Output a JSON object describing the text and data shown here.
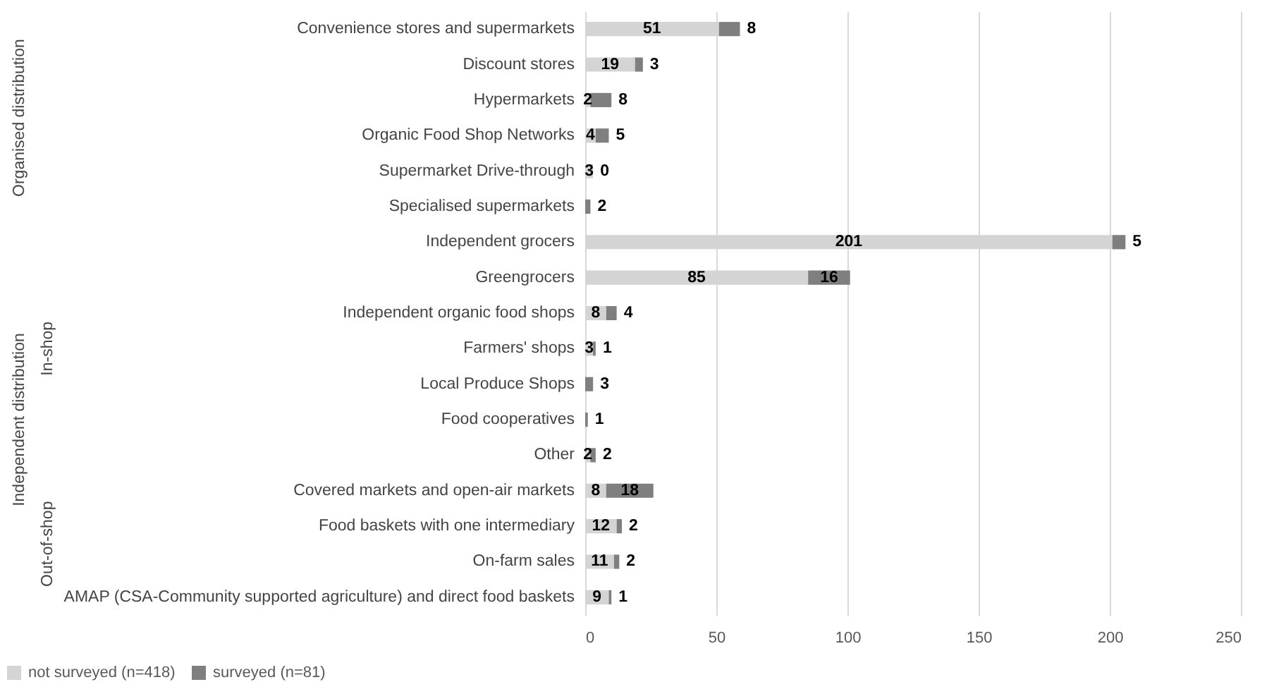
{
  "chart_data": {
    "type": "bar",
    "orientation": "horizontal",
    "stacked": true,
    "categories": [
      "Convenience stores and supermarkets",
      "Discount stores",
      "Hypermarkets",
      "Organic Food Shop Networks",
      "Supermarket Drive-through",
      "Specialised supermarkets",
      "Independent grocers",
      "Greengrocers",
      "Independent organic food shops",
      "Farmers' shops",
      "Local Produce Shops",
      "Food cooperatives",
      "Other",
      "Covered markets and open-air markets",
      "Food baskets with one intermediary",
      "On-farm sales",
      "AMAP (CSA-Community supported agriculture) and direct food baskets"
    ],
    "series": [
      {
        "name": "not surveyed (n=418)",
        "color": "#d4d4d4",
        "values": [
          51,
          19,
          2,
          4,
          3,
          0,
          201,
          85,
          8,
          3,
          0,
          0,
          2,
          8,
          12,
          11,
          9
        ],
        "value_labels": [
          "51",
          "19",
          "2",
          "4",
          "3",
          null,
          "201",
          "85",
          "8",
          "3",
          null,
          null,
          "2",
          "8",
          "12",
          "11",
          "9"
        ]
      },
      {
        "name": "surveyed (n=81)",
        "color": "#7f7f7f",
        "values": [
          8,
          3,
          8,
          5,
          0,
          2,
          5,
          16,
          4,
          1,
          3,
          1,
          2,
          18,
          2,
          2,
          1
        ],
        "value_labels": [
          "8",
          "3",
          "8",
          "5",
          "0",
          "2",
          "5",
          "16",
          "4",
          "1",
          "3",
          "1",
          "2",
          "18",
          "2",
          "2",
          "1"
        ]
      }
    ],
    "annotations": [
      "Organised distribution",
      "Independent distribution",
      "In-shop",
      "Out-of-shop"
    ],
    "xlim": [
      0,
      250
    ],
    "xticks": [
      0,
      50,
      100,
      150,
      200,
      250
    ],
    "grid": "x",
    "legend": "bottom"
  }
}
